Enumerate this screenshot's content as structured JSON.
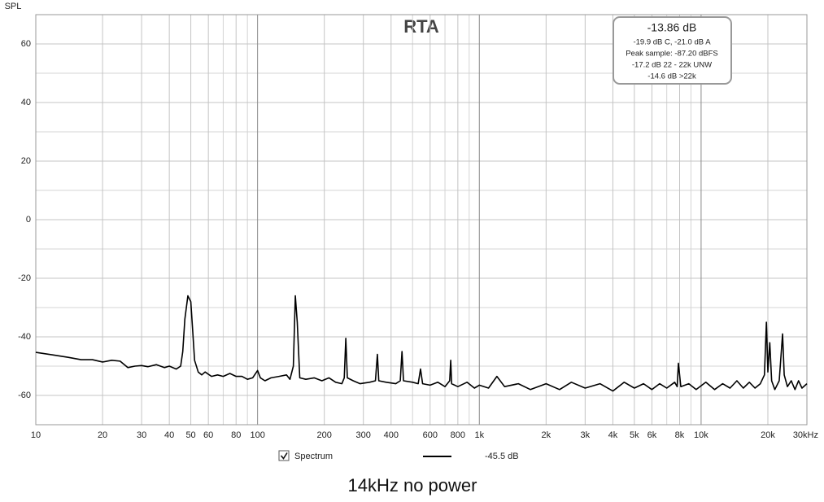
{
  "chart_data": {
    "type": "line",
    "title": "RTA",
    "y_axis_label": "SPL",
    "caption": "14kHz no power",
    "log_x": true,
    "grid": true,
    "xlim": [
      10,
      30000
    ],
    "ylim": [
      -70,
      70
    ],
    "xticks": [
      10,
      20,
      30,
      40,
      50,
      60,
      80,
      100,
      200,
      300,
      400,
      600,
      800,
      {
        "value": 1000,
        "label": "1k"
      },
      {
        "value": 2000,
        "label": "2k"
      },
      {
        "value": 3000,
        "label": "3k"
      },
      {
        "value": 4000,
        "label": "4k"
      },
      {
        "value": 5000,
        "label": "5k"
      },
      {
        "value": 6000,
        "label": "6k"
      },
      {
        "value": 8000,
        "label": "8k"
      },
      {
        "value": 10000,
        "label": "10k"
      },
      {
        "value": 20000,
        "label": "20k"
      },
      {
        "value": 30000,
        "label": "30kHz"
      }
    ],
    "x_minor_ticks": [
      70,
      90,
      500,
      700,
      900,
      7000,
      9000
    ],
    "yticks": [
      -60,
      -40,
      -20,
      0,
      20,
      40,
      60
    ],
    "y_minor_ticks": [
      -50,
      -30,
      -10,
      10,
      30,
      50
    ],
    "info_box": [
      "-13.86 dB",
      "-19.9 dB C, -21.0 dB A",
      "Peak sample: -87.20 dBFS",
      "-17.2 dB 22 - 22k UNW",
      "-14.6 dB >22k"
    ],
    "legend_value": "-45.5 dB",
    "series": [
      {
        "name": "Spectrum",
        "color": "#000000",
        "checked": true,
        "x": [
          10,
          12,
          14,
          16,
          18,
          20,
          22,
          24,
          26,
          28,
          30,
          32,
          35,
          38,
          40,
          43,
          45,
          46,
          47,
          48.5,
          50,
          51,
          52,
          54,
          56,
          58,
          62,
          66,
          70,
          75,
          80,
          85,
          90,
          95,
          100,
          103,
          108,
          115,
          125,
          135,
          140,
          145,
          148,
          151,
          155,
          165,
          180,
          195,
          210,
          225,
          240,
          246,
          250,
          254,
          270,
          290,
          320,
          340,
          347,
          352,
          380,
          420,
          440,
          448,
          455,
          500,
          530,
          543,
          555,
          600,
          650,
          700,
          735,
          743,
          750,
          800,
          880,
          950,
          1000,
          1100,
          1200,
          1300,
          1500,
          1700,
          2000,
          2300,
          2600,
          3000,
          3500,
          4000,
          4500,
          5000,
          5500,
          6000,
          6500,
          7000,
          7600,
          7800,
          7900,
          8100,
          8800,
          9500,
          10500,
          11500,
          12500,
          13500,
          14500,
          15500,
          16500,
          17500,
          18500,
          19300,
          19700,
          20000,
          20400,
          20800,
          21500,
          22500,
          23300,
          23700,
          24500,
          25500,
          26500,
          27500,
          28500,
          30000
        ],
        "values": [
          -45.3,
          -46.2,
          -47,
          -47.8,
          -47.8,
          -48.6,
          -48,
          -48.3,
          -50.5,
          -50,
          -49.8,
          -50.2,
          -49.5,
          -50.5,
          -50,
          -51,
          -50,
          -45,
          -34,
          -26,
          -28,
          -38,
          -48,
          -52,
          -53,
          -52,
          -53.5,
          -53,
          -53.5,
          -52.5,
          -53.5,
          -53.5,
          -54.5,
          -54,
          -51.5,
          -54,
          -55,
          -54,
          -53.5,
          -53,
          -54.5,
          -50,
          -26,
          -35,
          -54,
          -54.5,
          -54,
          -55,
          -54,
          -55.5,
          -56,
          -54,
          -40.5,
          -54,
          -55,
          -56,
          -55.5,
          -55,
          -46,
          -55,
          -55.5,
          -56,
          -55,
          -45,
          -55,
          -55.5,
          -56,
          -51,
          -56,
          -56.5,
          -55.5,
          -57,
          -55,
          -48,
          -56,
          -57,
          -55.5,
          -57.5,
          -56.5,
          -57.5,
          -53.5,
          -57,
          -56,
          -58,
          -56,
          -58,
          -55.5,
          -57.5,
          -56,
          -58.5,
          -55.5,
          -57.5,
          -56,
          -58,
          -56,
          -57.5,
          -55.5,
          -57,
          -49,
          -57,
          -56,
          -58,
          -55.5,
          -58,
          -56,
          -57.5,
          -55,
          -57.5,
          -55.5,
          -57.5,
          -56,
          -53,
          -35,
          -52,
          -42,
          -55,
          -58,
          -55,
          -39,
          -53,
          -57,
          -55,
          -58,
          -55,
          -57.5,
          -56
        ]
      }
    ]
  }
}
